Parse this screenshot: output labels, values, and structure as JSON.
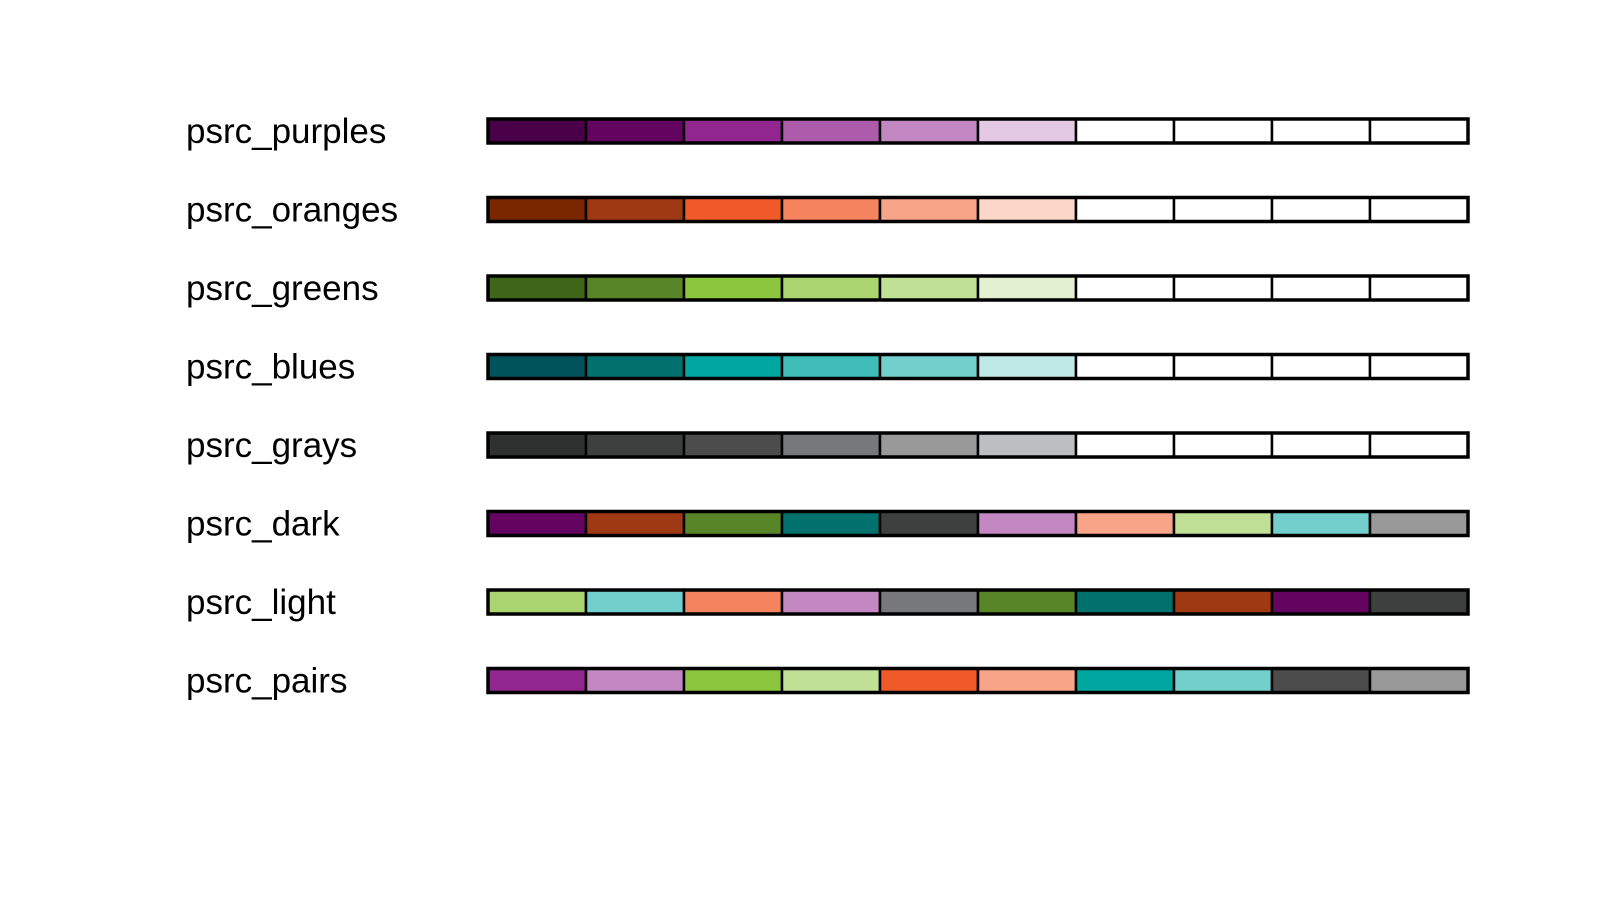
{
  "chart_data": {
    "type": "table",
    "title": "",
    "xlabel": "",
    "ylabel": "",
    "grid": false,
    "palettes": [
      {
        "name": "psrc_purples",
        "colors": [
          "#4a0048",
          "#630460",
          "#91268f",
          "#ad5cab",
          "#c388c2",
          "#e3c9e3",
          "#ffffff",
          "#ffffff",
          "#ffffff",
          "#ffffff"
        ]
      },
      {
        "name": "psrc_oranges",
        "colors": [
          "#7a2700",
          "#9f3913",
          "#f05a28",
          "#f4835e",
          "#f7a489",
          "#fbd6c9",
          "#ffffff",
          "#ffffff",
          "#ffffff",
          "#ffffff"
        ]
      },
      {
        "name": "psrc_greens",
        "colors": [
          "#3f6618",
          "#588527",
          "#8cc63e",
          "#a9d46e",
          "#c0e095",
          "#e2f0cf",
          "#ffffff",
          "#ffffff",
          "#ffffff",
          "#ffffff"
        ]
      },
      {
        "name": "psrc_blues",
        "colors": [
          "#00535a",
          "#00716c",
          "#00a7a0",
          "#40bdb8",
          "#73cfcb",
          "#bfe9e7",
          "#ffffff",
          "#ffffff",
          "#ffffff",
          "#ffffff"
        ]
      },
      {
        "name": "psrc_grays",
        "colors": [
          "#2f3030",
          "#3e4040",
          "#4c4c4c",
          "#76787a",
          "#999999",
          "#bcbec0",
          "#ffffff",
          "#ffffff",
          "#ffffff",
          "#ffffff"
        ]
      },
      {
        "name": "psrc_dark",
        "colors": [
          "#630460",
          "#9f3913",
          "#588527",
          "#00716c",
          "#3e4040",
          "#c388c2",
          "#f7a489",
          "#c0e095",
          "#73cfcb",
          "#999999"
        ]
      },
      {
        "name": "psrc_light",
        "colors": [
          "#a9d46e",
          "#73cfcb",
          "#f4835e",
          "#c388c2",
          "#76787a",
          "#588527",
          "#00716c",
          "#9f3913",
          "#630460",
          "#3e4040"
        ]
      },
      {
        "name": "psrc_pairs",
        "colors": [
          "#91268f",
          "#c388c2",
          "#8cc63e",
          "#c0e095",
          "#f05a28",
          "#f7a489",
          "#00a7a0",
          "#73cfcb",
          "#4c4c4c",
          "#999999"
        ]
      }
    ]
  }
}
